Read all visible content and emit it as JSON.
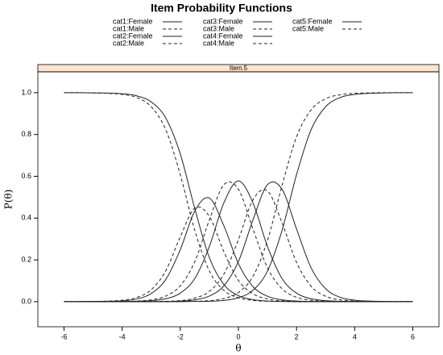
{
  "chart_data": {
    "type": "line",
    "title": "Item Probability Functions",
    "panel_title": "Item.5",
    "panel_color": "#ffe5cc",
    "x_label": "θ",
    "y_label": "P(θ)",
    "x": [
      -6,
      -5.5,
      -5,
      -4.5,
      -4,
      -3.5,
      -3,
      -2.5,
      -2,
      -1.5,
      -1,
      -0.5,
      0,
      0.5,
      1,
      1.5,
      2,
      2.5,
      3,
      3.5,
      4,
      4.5,
      5,
      5.5,
      6
    ],
    "xlim": [
      -6.9,
      6.9
    ],
    "xticks": [
      -6,
      -4,
      -2,
      0,
      2,
      4,
      6
    ],
    "ylim": [
      -0.12,
      1.1
    ],
    "yticks": [
      {
        "value": 0,
        "label": "0.0"
      },
      {
        "value": 0.2,
        "label": "0.2"
      },
      {
        "value": 0.4,
        "label": "0.4"
      },
      {
        "value": 0.6,
        "label": "0.6"
      },
      {
        "value": 0.8,
        "label": "0.8"
      },
      {
        "value": 1,
        "label": "1.0"
      }
    ],
    "series": [
      {
        "name": "cat1:Female",
        "color": "#222222",
        "linestyle": "solid",
        "values": [
          1,
          1,
          0.999,
          0.998,
          0.995,
          0.985,
          0.956,
          0.879,
          0.707,
          0.445,
          0.211,
          0.082,
          0.029,
          0.01,
          0.003,
          0.001,
          0,
          0,
          0,
          0,
          0,
          0,
          0,
          0,
          0
        ]
      },
      {
        "name": "cat1:Male",
        "color": "#222222",
        "linestyle": "dashed",
        "values": [
          1,
          1,
          0.999,
          0.997,
          0.992,
          0.977,
          0.933,
          0.823,
          0.608,
          0.341,
          0.147,
          0.054,
          0.019,
          0.006,
          0.002,
          0.001,
          0,
          0,
          0,
          0,
          0,
          0,
          0,
          0,
          0
        ]
      },
      {
        "name": "cat2:Female",
        "color": "#222222",
        "linestyle": "solid",
        "values": [
          0,
          0,
          0.001,
          0.002,
          0.004,
          0.013,
          0.039,
          0.106,
          0.249,
          0.434,
          0.496,
          0.363,
          0.182,
          0.072,
          0.026,
          0.009,
          0.003,
          0.001,
          0,
          0,
          0,
          0,
          0,
          0,
          0
        ]
      },
      {
        "name": "cat2:Male",
        "color": "#222222",
        "linestyle": "dashed",
        "values": [
          0,
          0,
          0.001,
          0.003,
          0.007,
          0.02,
          0.057,
          0.148,
          0.31,
          0.448,
          0.408,
          0.239,
          0.102,
          0.038,
          0.013,
          0.004,
          0.002,
          0.001,
          0,
          0,
          0,
          0,
          0,
          0,
          0
        ]
      },
      {
        "name": "cat3:Female",
        "color": "#222222",
        "linestyle": "solid",
        "values": [
          0,
          0,
          0,
          0,
          0.001,
          0.002,
          0.005,
          0.014,
          0.041,
          0.111,
          0.264,
          0.473,
          0.578,
          0.473,
          0.264,
          0.111,
          0.041,
          0.014,
          0.005,
          0.002,
          0.001,
          0,
          0,
          0,
          0
        ]
      },
      {
        "name": "cat3:Male",
        "color": "#222222",
        "linestyle": "dashed",
        "values": [
          0,
          0,
          0,
          0,
          0.001,
          0.003,
          0.009,
          0.027,
          0.076,
          0.192,
          0.391,
          0.56,
          0.538,
          0.348,
          0.162,
          0.062,
          0.021,
          0.007,
          0.003,
          0.001,
          0,
          0,
          0,
          0,
          0
        ]
      },
      {
        "name": "cat4:Female",
        "color": "#222222",
        "linestyle": "solid",
        "values": [
          0,
          0,
          0,
          0,
          0,
          0,
          0,
          0.001,
          0.003,
          0.009,
          0.027,
          0.076,
          0.192,
          0.391,
          0.56,
          0.538,
          0.348,
          0.162,
          0.062,
          0.021,
          0.007,
          0.003,
          0.001,
          0,
          0
        ]
      },
      {
        "name": "cat4:Male",
        "color": "#222222",
        "linestyle": "dashed",
        "values": [
          0,
          0,
          0,
          0,
          0,
          0,
          0.001,
          0.002,
          0.005,
          0.017,
          0.049,
          0.132,
          0.297,
          0.487,
          0.53,
          0.378,
          0.188,
          0.074,
          0.026,
          0.009,
          0.003,
          0.001,
          0,
          0,
          0
        ]
      },
      {
        "name": "cat5:Female",
        "color": "#222222",
        "linestyle": "solid",
        "values": [
          0,
          0,
          0,
          0,
          0,
          0,
          0,
          0,
          0,
          0.001,
          0.002,
          0.006,
          0.019,
          0.054,
          0.147,
          0.341,
          0.608,
          0.823,
          0.933,
          0.977,
          0.992,
          0.997,
          0.999,
          1,
          1
        ]
      },
      {
        "name": "cat5:Male",
        "color": "#222222",
        "linestyle": "dashed",
        "values": [
          0,
          0,
          0,
          0,
          0,
          0,
          0,
          0,
          0.001,
          0.002,
          0.005,
          0.015,
          0.044,
          0.121,
          0.293,
          0.555,
          0.789,
          0.918,
          0.971,
          0.99,
          0.997,
          0.999,
          1,
          1,
          1
        ]
      }
    ]
  }
}
